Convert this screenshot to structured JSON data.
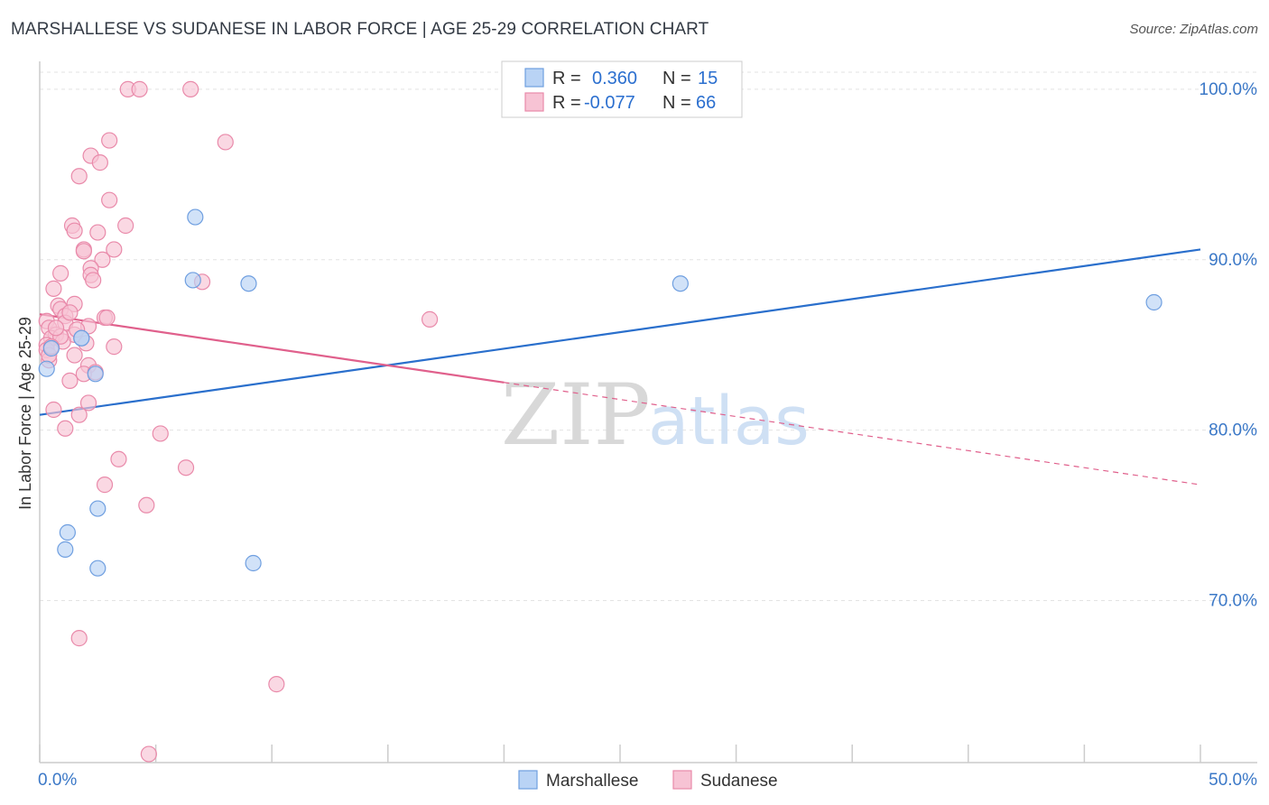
{
  "title": "MARSHALLESE VS SUDANESE IN LABOR FORCE | AGE 25-29 CORRELATION CHART",
  "source": "Source: ZipAtlas.com",
  "watermark": {
    "zip": "ZIP",
    "atlas": "atlas"
  },
  "colors": {
    "marshallese_fill": "#b9d3f5",
    "marshallese_stroke": "#6f9fe0",
    "marshallese_line": "#2a6fcc",
    "sudanese_fill": "#f7c3d4",
    "sudanese_stroke": "#e98aaa",
    "sudanese_line": "#e0608c",
    "tick_text": "#3b78c7",
    "grid": "#e3e3e3"
  },
  "legend": {
    "r_label": "R =",
    "n_label": "N =",
    "rows": [
      {
        "series": "Marshallese",
        "r": "0.360",
        "n": "15"
      },
      {
        "series": "Sudanese",
        "r": "-0.077",
        "n": "66"
      }
    ]
  },
  "chart_data": {
    "type": "scatter",
    "title": "MARSHALLESE VS SUDANESE IN LABOR FORCE | AGE 25-29 CORRELATION CHART",
    "xlabel": "",
    "ylabel": "In Labor Force | Age 25-29",
    "xlim": [
      0,
      50
    ],
    "ylim": [
      60.5,
      101
    ],
    "x_tick_labels": [
      "0.0%",
      "50.0%"
    ],
    "y_ticks": [
      70,
      80,
      90,
      100
    ],
    "y_tick_labels": [
      "70.0%",
      "80.0%",
      "90.0%",
      "100.0%"
    ],
    "grid": true,
    "legend_position": "bottom-center",
    "series": [
      {
        "name": "Marshallese",
        "points": [
          [
            0.3,
            83.6
          ],
          [
            0.5,
            84.8
          ],
          [
            1.8,
            85.4
          ],
          [
            2.4,
            83.3
          ],
          [
            2.5,
            71.9
          ],
          [
            1.1,
            73.0
          ],
          [
            1.2,
            74.0
          ],
          [
            2.5,
            75.4
          ],
          [
            6.7,
            92.5
          ],
          [
            6.6,
            88.8
          ],
          [
            9.0,
            88.6
          ],
          [
            9.2,
            72.2
          ],
          [
            27.6,
            88.6
          ],
          [
            48.0,
            87.5
          ],
          [
            1.8,
            85.4
          ]
        ],
        "trend": {
          "x": [
            0,
            50
          ],
          "y": [
            80.9,
            90.6
          ],
          "style": "solid"
        }
      },
      {
        "name": "Sudanese",
        "points": [
          [
            3.8,
            100.0
          ],
          [
            4.3,
            100.0
          ],
          [
            6.5,
            100.0
          ],
          [
            3.0,
            97.0
          ],
          [
            8.0,
            96.9
          ],
          [
            2.2,
            96.1
          ],
          [
            2.6,
            95.7
          ],
          [
            1.7,
            94.9
          ],
          [
            3.0,
            93.5
          ],
          [
            3.7,
            92.0
          ],
          [
            1.4,
            92.0
          ],
          [
            1.5,
            91.7
          ],
          [
            2.5,
            91.6
          ],
          [
            1.9,
            90.6
          ],
          [
            1.9,
            90.5
          ],
          [
            3.2,
            90.6
          ],
          [
            2.7,
            90.0
          ],
          [
            2.2,
            89.5
          ],
          [
            0.9,
            89.2
          ],
          [
            2.2,
            89.1
          ],
          [
            2.3,
            88.8
          ],
          [
            7.0,
            88.7
          ],
          [
            0.6,
            88.3
          ],
          [
            0.8,
            87.3
          ],
          [
            1.5,
            87.4
          ],
          [
            0.9,
            87.1
          ],
          [
            1.1,
            86.7
          ],
          [
            2.8,
            86.6
          ],
          [
            0.3,
            86.4
          ],
          [
            1.1,
            86.3
          ],
          [
            0.4,
            86.0
          ],
          [
            2.1,
            86.1
          ],
          [
            16.8,
            86.5
          ],
          [
            0.7,
            85.6
          ],
          [
            1.5,
            85.6
          ],
          [
            0.5,
            85.4
          ],
          [
            1.0,
            85.2
          ],
          [
            2.0,
            85.1
          ],
          [
            0.3,
            85.0
          ],
          [
            3.2,
            84.9
          ],
          [
            0.3,
            84.7
          ],
          [
            1.5,
            84.4
          ],
          [
            0.4,
            84.1
          ],
          [
            2.1,
            83.8
          ],
          [
            0.4,
            84.4
          ],
          [
            1.9,
            83.3
          ],
          [
            1.3,
            82.9
          ],
          [
            2.1,
            81.6
          ],
          [
            0.6,
            81.2
          ],
          [
            1.7,
            80.9
          ],
          [
            1.1,
            80.1
          ],
          [
            5.2,
            79.8
          ],
          [
            3.4,
            78.3
          ],
          [
            6.3,
            77.8
          ],
          [
            2.8,
            76.8
          ],
          [
            4.6,
            75.6
          ],
          [
            1.7,
            67.8
          ],
          [
            10.2,
            65.1
          ],
          [
            4.7,
            61.0
          ],
          [
            0.9,
            85.5
          ],
          [
            1.3,
            86.9
          ],
          [
            2.4,
            83.4
          ],
          [
            0.7,
            86.0
          ],
          [
            1.6,
            85.9
          ],
          [
            2.9,
            86.6
          ],
          [
            0.5,
            84.9
          ]
        ],
        "trend": {
          "x": [
            0,
            20
          ],
          "y": [
            86.8,
            82.8
          ],
          "style": "solid",
          "dashed_extension_x": [
            20,
            50
          ],
          "dashed_extension_y": [
            82.8,
            76.8
          ]
        }
      }
    ]
  }
}
